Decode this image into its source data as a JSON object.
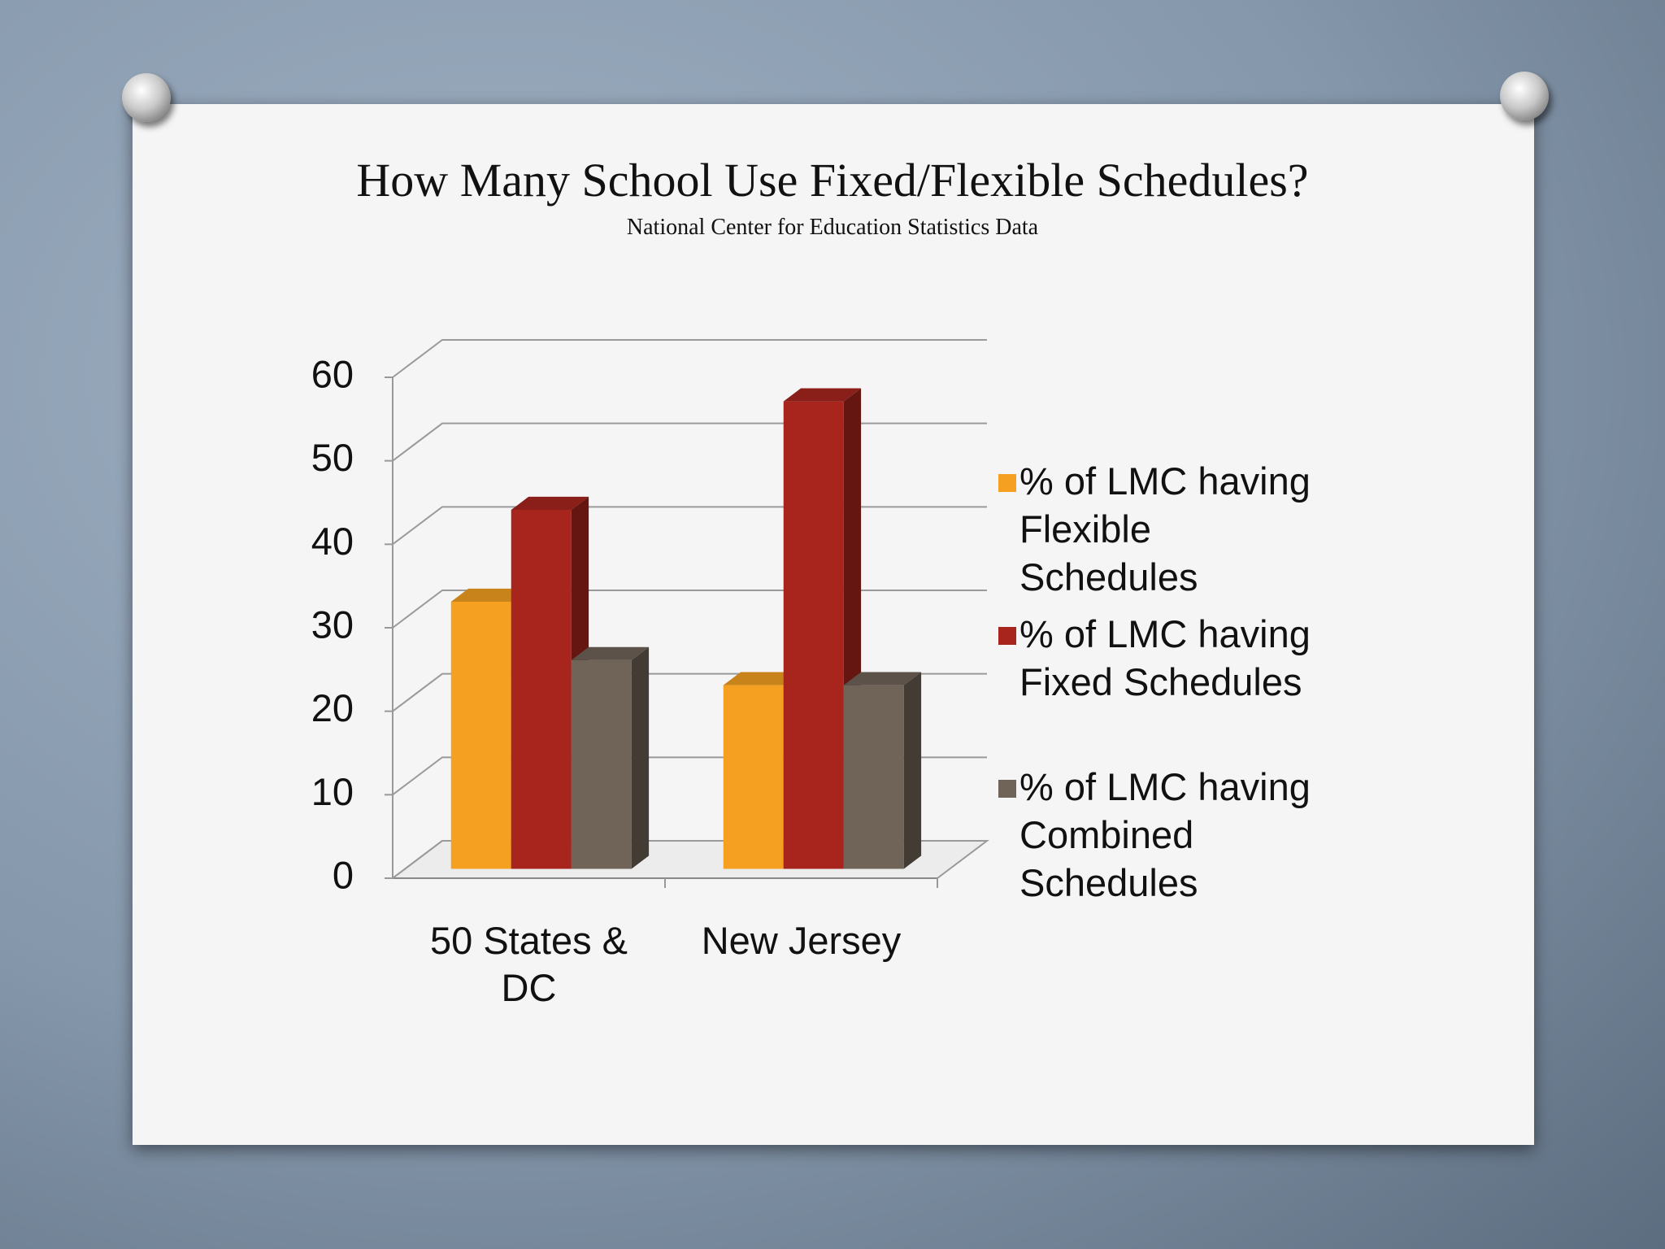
{
  "chart_data": {
    "type": "bar3d",
    "title": "How Many School Use Fixed/Flexible Schedules?",
    "subtitle": "National Center for Education Statistics Data",
    "categories": [
      "50 States & DC",
      "New Jersey"
    ],
    "series": [
      {
        "name": "% of LMC having Flexible Schedules",
        "color": "#f5a021",
        "values": [
          32,
          22
        ]
      },
      {
        "name": "% of LMC having Fixed Schedules",
        "color": "#a8251d",
        "values": [
          43,
          56
        ]
      },
      {
        "name": "% of LMC having Combined Schedules",
        "color": "#706459",
        "values": [
          25,
          22
        ]
      }
    ],
    "ylim": [
      0,
      60
    ],
    "yticks": [
      0,
      10,
      20,
      30,
      40,
      50,
      60
    ],
    "grid": true,
    "legend": "right"
  }
}
